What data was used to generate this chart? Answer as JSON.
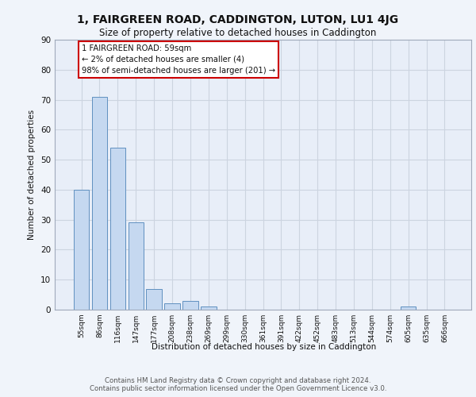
{
  "title": "1, FAIRGREEN ROAD, CADDINGTON, LUTON, LU1 4JG",
  "subtitle": "Size of property relative to detached houses in Caddington",
  "xlabel": "Distribution of detached houses by size in Caddington",
  "ylabel": "Number of detached properties",
  "categories": [
    "55sqm",
    "86sqm",
    "116sqm",
    "147sqm",
    "177sqm",
    "208sqm",
    "238sqm",
    "269sqm",
    "299sqm",
    "330sqm",
    "361sqm",
    "391sqm",
    "422sqm",
    "452sqm",
    "483sqm",
    "513sqm",
    "544sqm",
    "574sqm",
    "605sqm",
    "635sqm",
    "666sqm"
  ],
  "values": [
    40,
    71,
    54,
    29,
    7,
    2,
    3,
    1,
    0,
    0,
    0,
    0,
    0,
    0,
    0,
    0,
    0,
    0,
    1,
    0,
    0
  ],
  "bar_color": "#c5d8f0",
  "bar_edge_color": "#6090c0",
  "annotation_box_text": "1 FAIRGREEN ROAD: 59sqm\n← 2% of detached houses are smaller (4)\n98% of semi-detached houses are larger (201) →",
  "annotation_box_color": "#cc0000",
  "annotation_box_fill": "#ffffff",
  "ylim": [
    0,
    90
  ],
  "yticks": [
    0,
    10,
    20,
    30,
    40,
    50,
    60,
    70,
    80,
    90
  ],
  "grid_color": "#ccd4e0",
  "background_color": "#e8eef8",
  "fig_background_color": "#f0f4fa",
  "footer_line1": "Contains HM Land Registry data © Crown copyright and database right 2024.",
  "footer_line2": "Contains public sector information licensed under the Open Government Licence v3.0."
}
